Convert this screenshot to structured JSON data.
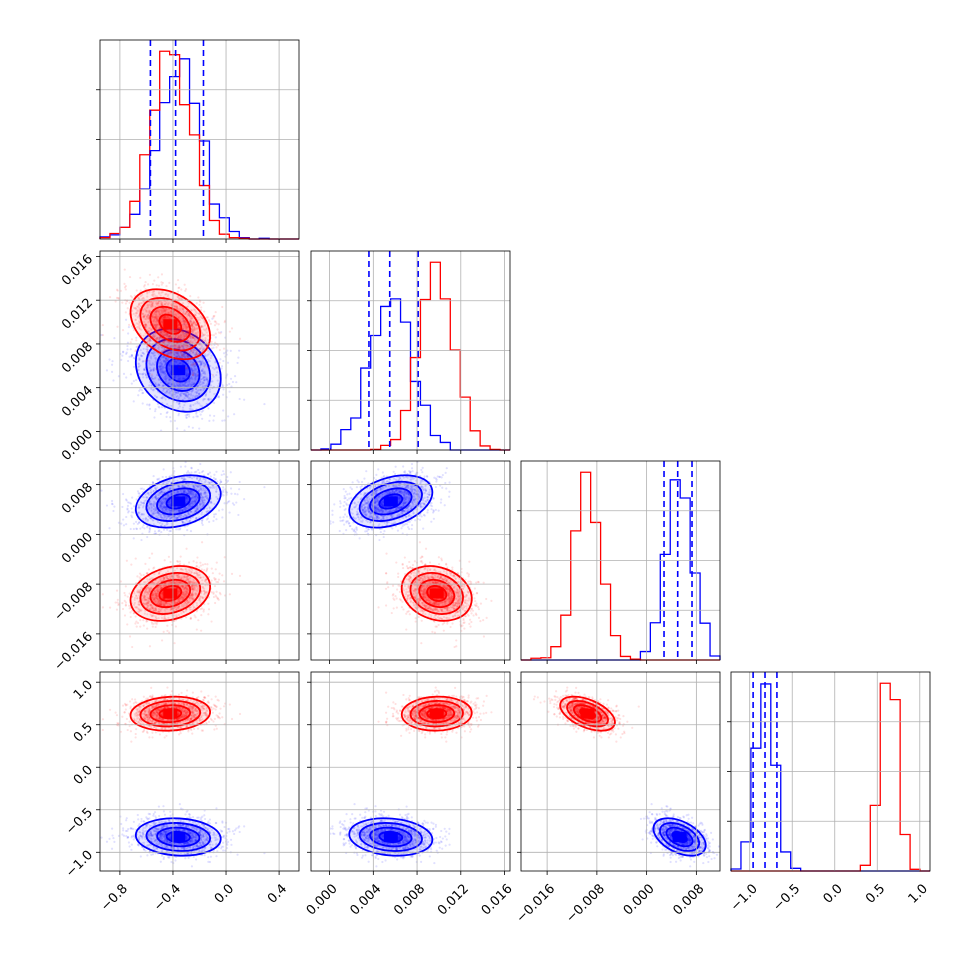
{
  "chart_data": {
    "type": "corner",
    "description_free": true,
    "parameters": [
      {
        "range": [
          -0.95,
          0.55
        ],
        "ticks": [
          -0.8,
          -0.4,
          0.0,
          0.4
        ],
        "tick_labels": [
          "−0.8",
          "−0.4",
          "0.0",
          "0.4"
        ]
      },
      {
        "range": [
          -0.0017,
          0.0165
        ],
        "ticks": [
          0.0,
          0.004,
          0.008,
          0.012,
          0.016
        ],
        "tick_labels": [
          "0.000",
          "0.004",
          "0.008",
          "0.012",
          "0.016"
        ]
      },
      {
        "range": [
          -0.0202,
          0.0118
        ],
        "ticks": [
          -0.016,
          -0.008,
          0.0,
          0.008
        ],
        "tick_labels": [
          "−0.016",
          "−0.008",
          "0.000",
          "0.008"
        ]
      },
      {
        "range": [
          -1.22,
          1.12
        ],
        "ticks": [
          -1.0,
          -0.5,
          0.0,
          0.5,
          1.0
        ],
        "tick_labels": [
          "−1.0",
          "−0.5",
          "0.0",
          "0.5",
          "1.0"
        ]
      }
    ],
    "series": [
      {
        "color": "#0000ff",
        "mean": [
          -0.36,
          0.0056,
          0.0053,
          -0.82
        ],
        "sd": [
          0.16,
          0.0019,
          0.0021,
          0.11
        ],
        "corr": [
          [
            0,
            1,
            -0.2
          ],
          [
            0,
            2,
            0.3
          ],
          [
            0,
            3,
            -0.1
          ],
          [
            1,
            2,
            0.35
          ],
          [
            1,
            3,
            -0.15
          ],
          [
            2,
            3,
            -0.45
          ]
        ],
        "quantiles": [
          [
            -0.57,
            -0.38,
            -0.17
          ],
          [
            0.0036,
            0.0055,
            0.0081
          ],
          [
            0.0028,
            0.005,
            0.0073
          ],
          [
            -0.96,
            -0.82,
            -0.68
          ]
        ]
      },
      {
        "color": "#ff0000",
        "mean": [
          -0.42,
          0.0098,
          -0.0095,
          0.63
        ],
        "sd": [
          0.15,
          0.0016,
          0.0022,
          0.1
        ],
        "corr": [
          [
            0,
            1,
            -0.35
          ],
          [
            0,
            2,
            0.25
          ],
          [
            0,
            3,
            0.1
          ],
          [
            1,
            2,
            -0.2
          ],
          [
            1,
            3,
            0.05
          ],
          [
            2,
            3,
            -0.5
          ]
        ],
        "quantiles": null
      }
    ]
  }
}
